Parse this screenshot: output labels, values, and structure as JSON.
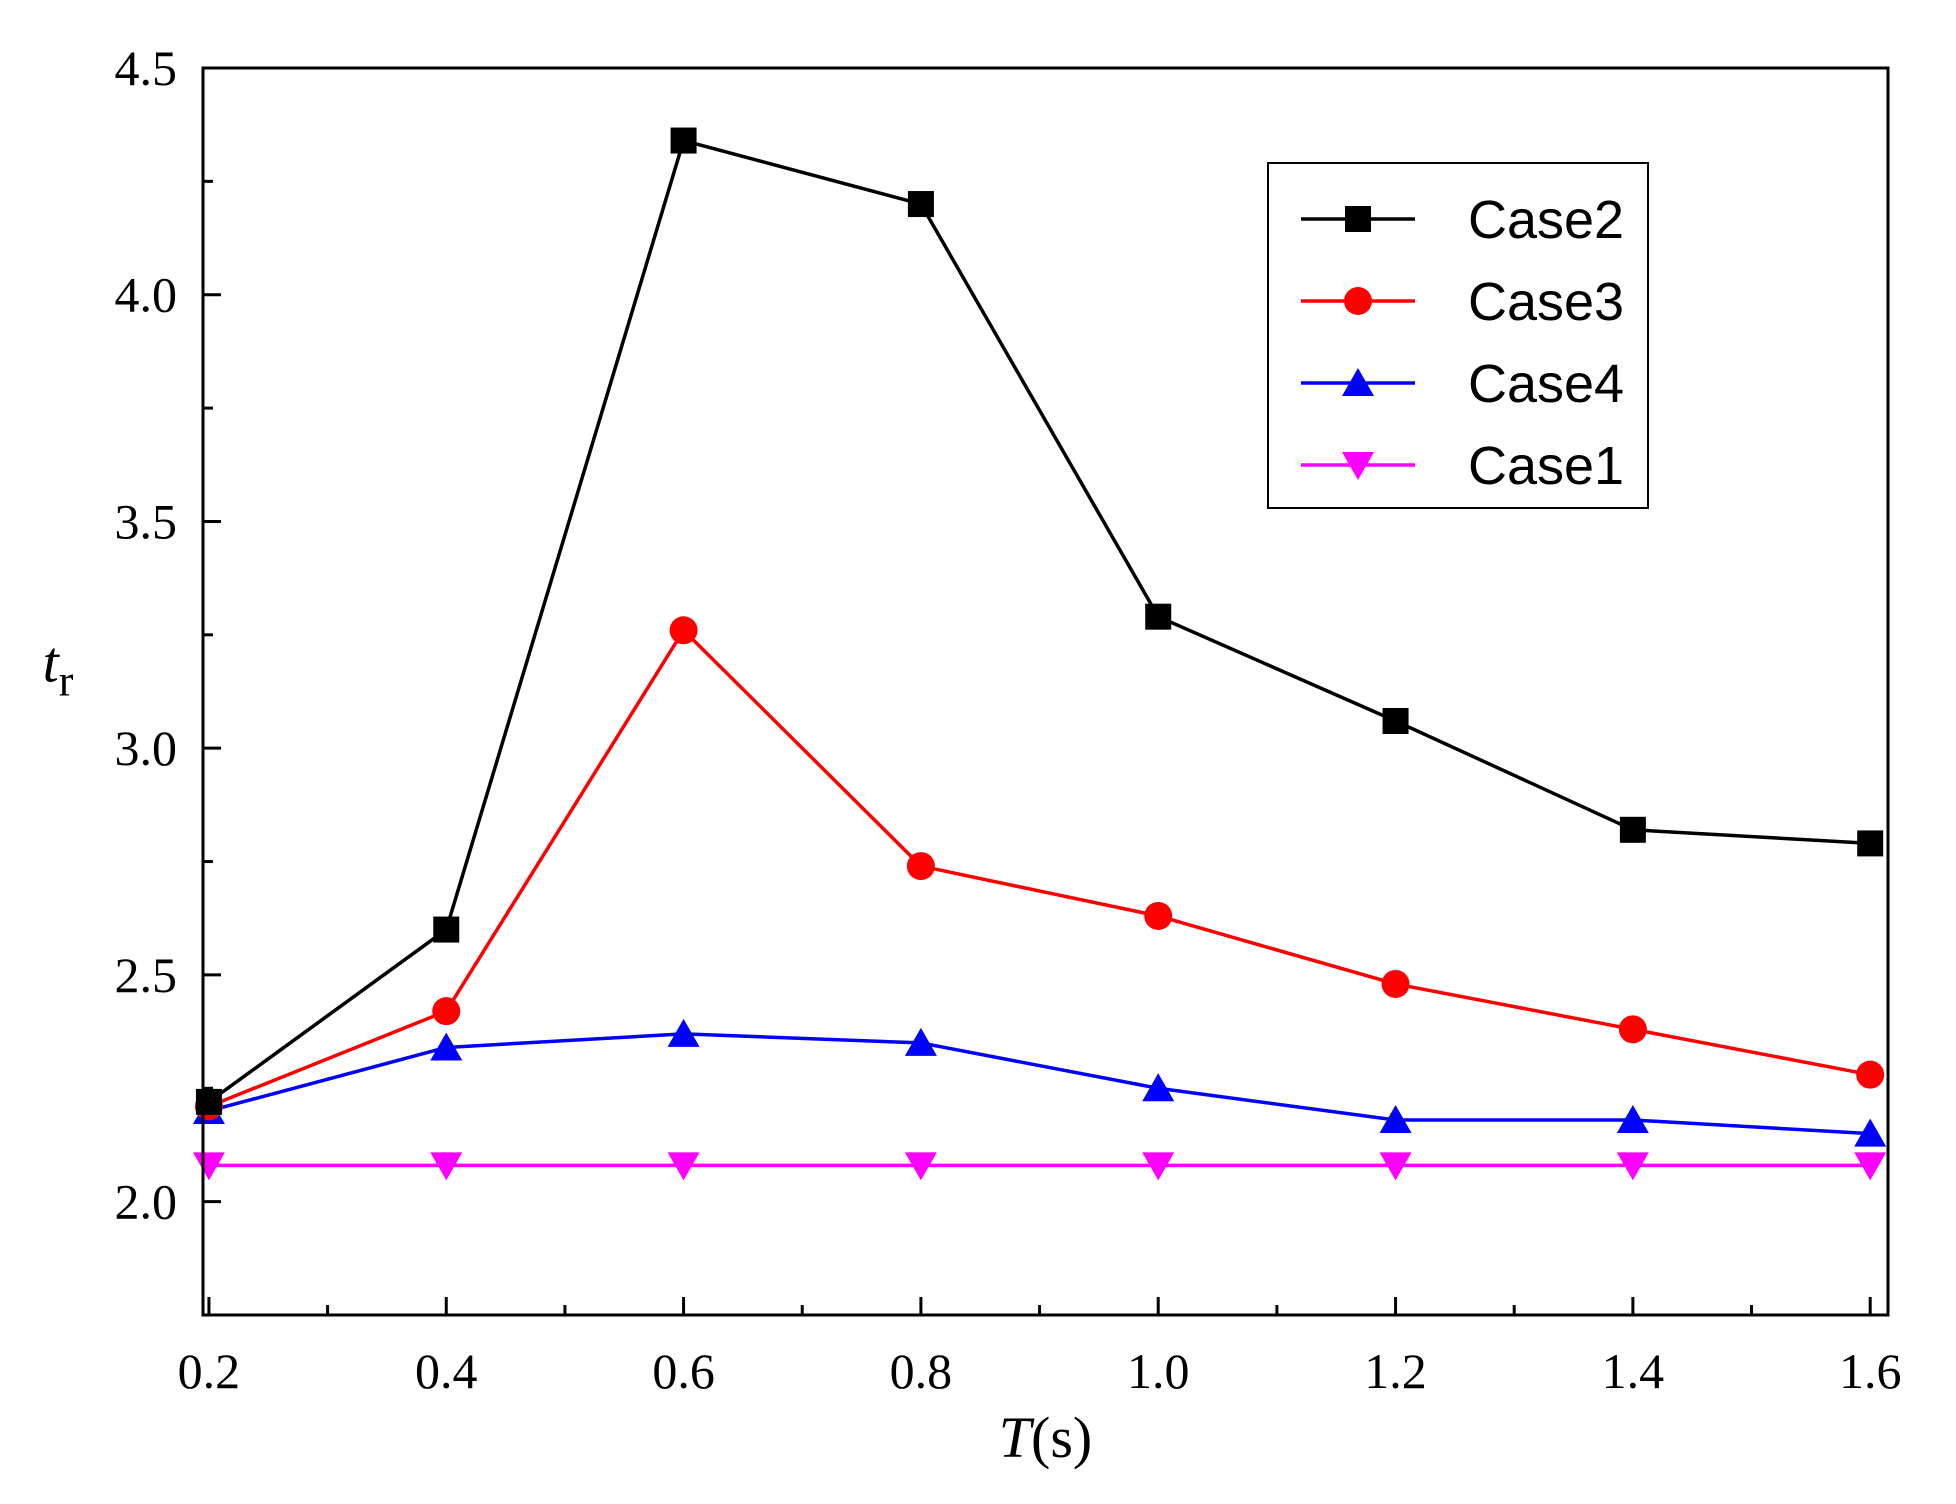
{
  "chart_data": {
    "type": "line",
    "title": "",
    "xlabel": {
      "italic": "T",
      "rest": "(s)"
    },
    "ylabel": {
      "italic": "t",
      "subscript": "r"
    },
    "xlim": [
      0.195,
      1.615
    ],
    "ylim": [
      1.75,
      4.5
    ],
    "x_ticks": [
      "0.2",
      "0.4",
      "0.6",
      "0.8",
      "1.0",
      "1.2",
      "1.4",
      "1.6"
    ],
    "y_ticks": [
      "2.0",
      "2.5",
      "3.0",
      "3.5",
      "4.0",
      "4.5"
    ],
    "x": [
      0.2,
      0.4,
      0.6,
      0.8,
      1.0,
      1.2,
      1.4,
      1.6
    ],
    "series": [
      {
        "name": "Case2",
        "color": "#000000",
        "marker": "square",
        "values": [
          2.22,
          2.6,
          4.34,
          4.2,
          3.29,
          3.06,
          2.82,
          2.79
        ]
      },
      {
        "name": "Case3",
        "color": "#ff0000",
        "marker": "circle",
        "values": [
          2.21,
          2.42,
          3.26,
          2.74,
          2.63,
          2.48,
          2.38,
          2.28
        ]
      },
      {
        "name": "Case4",
        "color": "#0000ff",
        "marker": "triangle-up",
        "values": [
          2.2,
          2.34,
          2.37,
          2.35,
          2.25,
          2.18,
          2.18,
          2.15
        ]
      },
      {
        "name": "Case1",
        "color": "#ff00ff",
        "marker": "triangle-down",
        "values": [
          2.08,
          2.08,
          2.08,
          2.08,
          2.08,
          2.08,
          2.08,
          2.08
        ]
      }
    ],
    "legend": {
      "position": "top-right",
      "order": [
        "Case2",
        "Case3",
        "Case4",
        "Case1"
      ]
    },
    "grid": false
  }
}
